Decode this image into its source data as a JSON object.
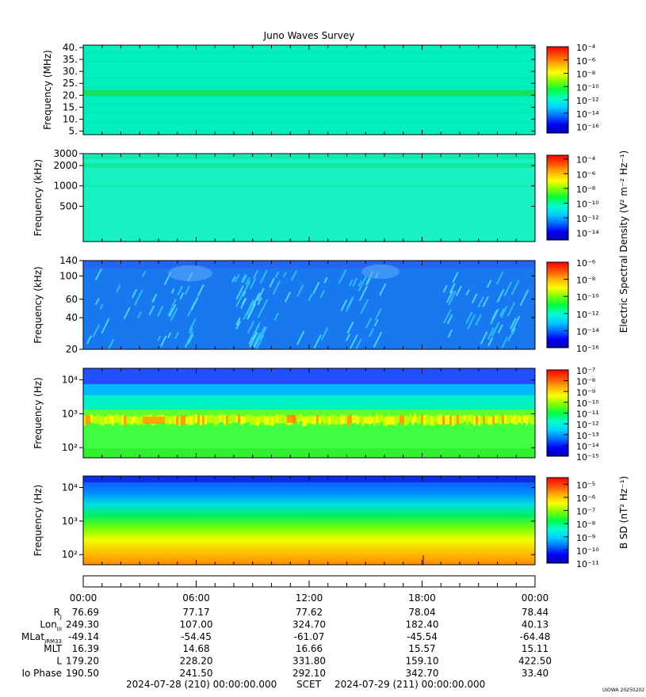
{
  "title": "Juno Waves Survey",
  "colors": {
    "ramp": [
      "#0000aa",
      "#0000ff",
      "#0070ff",
      "#00d0ff",
      "#00ffcc",
      "#00ff40",
      "#7fff00",
      "#ffff00",
      "#ffb000",
      "#ff5000",
      "#ff0000"
    ],
    "survey_background": "#00f0c0",
    "hf_background": "#18f2c2",
    "lf_background": "#1878f0"
  },
  "chart_data": [
    {
      "type": "heatmap",
      "name": "panel-hfr-mhz",
      "ylabel": "Frequency (MHz)",
      "yscale": "linear",
      "ylim": [
        3.5,
        41
      ],
      "yticks": [
        {
          "v": 5,
          "label": "5."
        },
        {
          "v": 10,
          "label": "10."
        },
        {
          "v": 15,
          "label": "15."
        },
        {
          "v": 20,
          "label": "20."
        },
        {
          "v": 25,
          "label": "25."
        },
        {
          "v": 30,
          "label": "30."
        },
        {
          "v": 35,
          "label": "35."
        },
        {
          "v": 40,
          "label": "40."
        }
      ],
      "features": [
        {
          "kind": "band",
          "y": 21,
          "note": "bright band near 21 MHz"
        }
      ],
      "colorbar": {
        "min_exp": -17,
        "max_exp": -4,
        "ticks": [
          -4,
          -6,
          -8,
          -10,
          -12,
          -14,
          -16
        ]
      }
    },
    {
      "type": "heatmap",
      "name": "panel-hfr-khz",
      "ylabel": "Frequency (kHz)",
      "yscale": "log",
      "ylim": [
        150,
        3000
      ],
      "yticks": [
        {
          "v": 3000,
          "label": "3000"
        },
        {
          "v": 2000,
          "label": "2000"
        },
        {
          "v": 1000,
          "label": "1000"
        },
        {
          "v": 500,
          "label": "500"
        }
      ],
      "features": [
        {
          "kind": "band",
          "y": 2000,
          "note": "enhanced band near 2000 kHz"
        }
      ],
      "colorbar": {
        "min_exp": -15,
        "max_exp": -3.5,
        "ticks": [
          -4,
          -6,
          -8,
          -10,
          -12,
          -14
        ]
      }
    },
    {
      "type": "heatmap",
      "name": "panel-lfr-khz",
      "ylabel": "Frequency (kHz)",
      "yscale": "log",
      "ylim": [
        20,
        140
      ],
      "yticks": [
        {
          "v": 140,
          "label": "140"
        },
        {
          "v": 100,
          "label": "100"
        },
        {
          "v": 60,
          "label": "60"
        },
        {
          "v": 40,
          "label": "40"
        },
        {
          "v": 20,
          "label": "20"
        }
      ],
      "colorbar": {
        "min_exp": -16,
        "max_exp": -6,
        "ticks": [
          -6,
          -8,
          -10,
          -12,
          -14,
          -16
        ]
      }
    },
    {
      "type": "heatmap",
      "name": "panel-lfr-hz",
      "ylabel": "Frequency (Hz)",
      "yscale": "log",
      "ylim": [
        50,
        22000
      ],
      "yticks": [
        {
          "v": 10000,
          "label": "10⁴"
        },
        {
          "v": 1000,
          "label": "10³"
        },
        {
          "v": 100,
          "label": "10²"
        }
      ],
      "features": [
        {
          "kind": "band",
          "y": 700,
          "note": "intense emission near 700 Hz"
        }
      ],
      "colorbar": {
        "min_exp": -15,
        "max_exp": -7,
        "ticks": [
          -7,
          -8,
          -9,
          -10,
          -11,
          -12,
          -13,
          -14,
          -15
        ]
      }
    },
    {
      "type": "heatmap",
      "name": "panel-bsd",
      "ylabel": "Frequency (Hz)",
      "yscale": "log",
      "ylim": [
        50,
        22000
      ],
      "yticks": [
        {
          "v": 10000,
          "label": "10⁴"
        },
        {
          "v": 1000,
          "label": "10³"
        },
        {
          "v": 100,
          "label": "10²"
        }
      ],
      "colorbar": {
        "min_exp": -11,
        "max_exp": -4.5,
        "ticks": [
          -5,
          -6,
          -7,
          -8,
          -9,
          -10,
          -11
        ]
      }
    }
  ],
  "colorbar_labels": {
    "electric": "Electric Spectral Density (V² m⁻² Hz⁻¹)",
    "magnetic": "B SD (nT² Hz⁻¹)"
  },
  "time_axis": {
    "ticks": [
      "00:00",
      "06:00",
      "12:00",
      "18:00",
      "00:00"
    ],
    "rows": [
      {
        "label": "R",
        "sub": "J",
        "values": [
          "76.69",
          "77.17",
          "77.62",
          "78.04",
          "78.44"
        ]
      },
      {
        "label": "Lon",
        "sub": "III",
        "values": [
          "249.30",
          "107.00",
          "324.70",
          "182.40",
          "40.13"
        ]
      },
      {
        "label": "MLat",
        "sub": "JRM33",
        "values": [
          "-49.14",
          "-54.45",
          "-61.07",
          "-45.54",
          "-64.48"
        ]
      },
      {
        "label": "MLT",
        "sub": "",
        "values": [
          "16.39",
          "14.68",
          "16.66",
          "15.57",
          "15.11"
        ]
      },
      {
        "label": "L",
        "sub": "",
        "values": [
          "179.20",
          "228.20",
          "331.80",
          "159.10",
          "422.50"
        ]
      },
      {
        "label": "Io Phase",
        "sub": "",
        "values": [
          "190.50",
          "241.50",
          "292.10",
          "342.70",
          "33.40"
        ]
      }
    ],
    "start": "2024-07-28 (210) 00:00:00.000",
    "scet": "SCET",
    "end": "2024-07-29 (211) 00:00:00.000"
  },
  "credit": "UIOWA 20250202"
}
